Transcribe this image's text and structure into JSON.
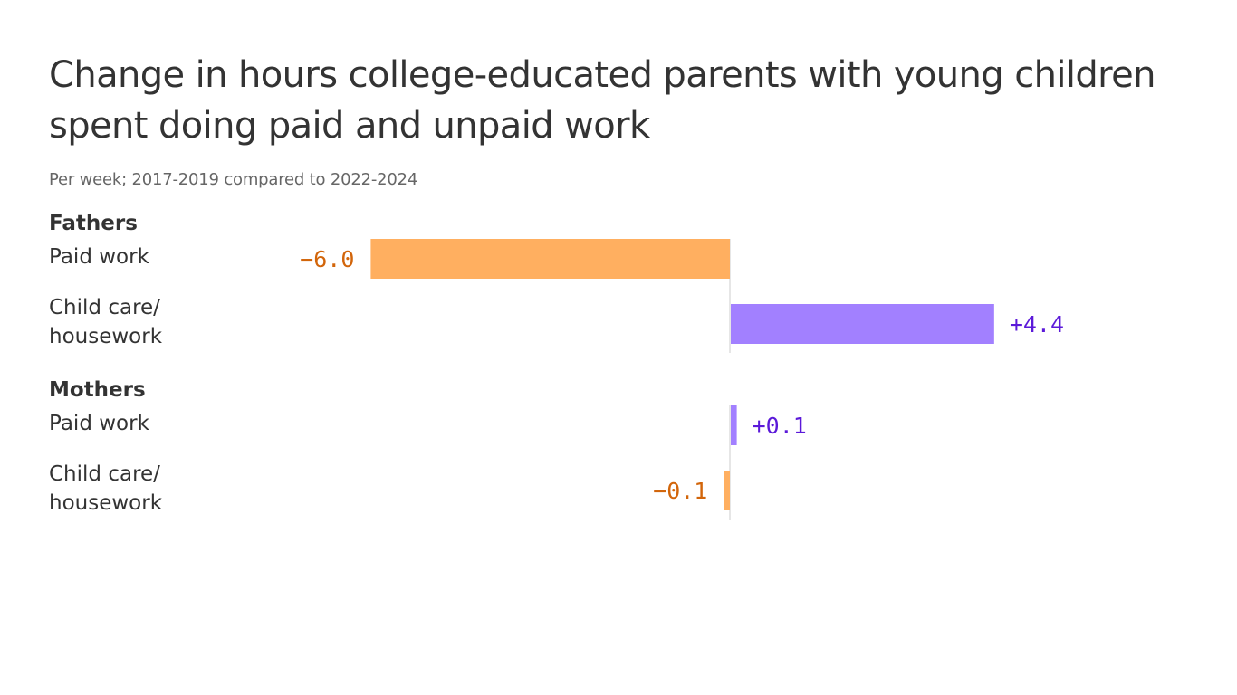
{
  "colors": {
    "negative_bar": "#ffaf60",
    "positive_bar": "#a280ff",
    "negative_text": "#d2650a",
    "positive_text": "#5b19d9",
    "baseline": "#dddddd",
    "text": "#333333",
    "subtitle": "#666666"
  },
  "chart_data": {
    "type": "bar",
    "orientation": "horizontal",
    "title": "Change in hours college-educated parents with young children spent doing paid and unpaid work",
    "subtitle": "Per week; 2017-2019 compared to 2022-2024",
    "xlabel": "",
    "ylabel": "",
    "grid": false,
    "groups": [
      {
        "name": "Fathers",
        "rows": [
          {
            "category": "Paid work",
            "value": -6.0,
            "value_label": "−6.0"
          },
          {
            "category": "Child care/ housework",
            "value": 4.4,
            "value_label": "+4.4"
          }
        ]
      },
      {
        "name": "Mothers",
        "rows": [
          {
            "category": "Paid work",
            "value": 0.1,
            "value_label": "+0.1"
          },
          {
            "category": "Child care/ housework",
            "value": -0.1,
            "value_label": "−0.1"
          }
        ]
      }
    ]
  }
}
